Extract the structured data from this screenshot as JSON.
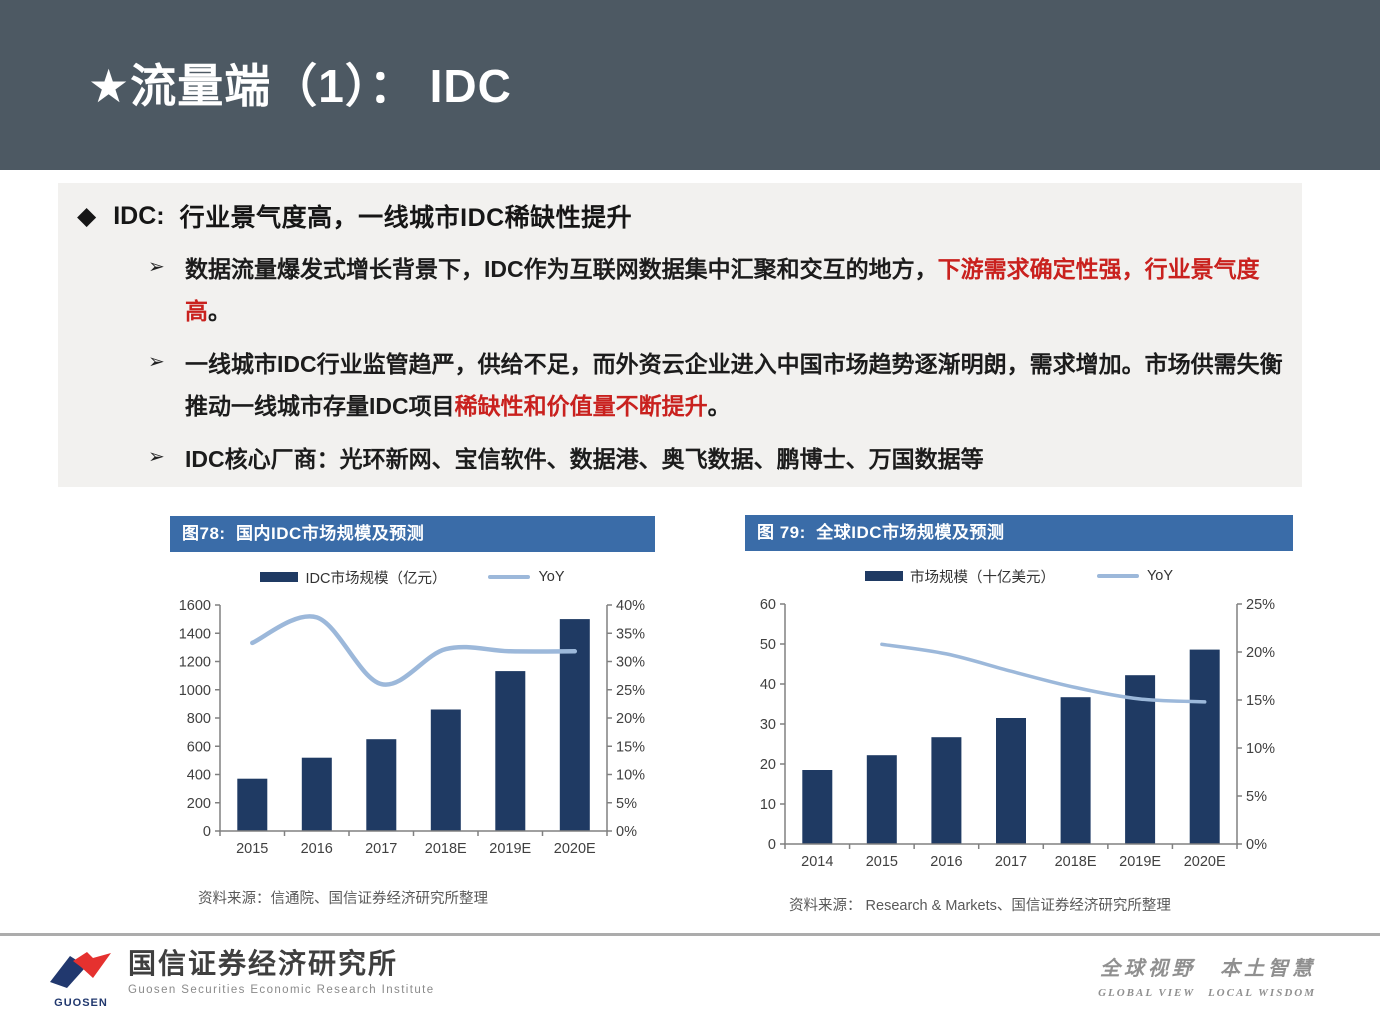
{
  "colors": {
    "header_bg": "#4d5963",
    "box_bg": "#f2f1ef",
    "title_bar_bg": "#3a6ca8",
    "bar_navy": "#1f3a63",
    "line_blue": "#9cb8da",
    "red_text": "#c9211e",
    "axis_gray": "#808080",
    "label_gray": "#404040",
    "source_gray": "#595959",
    "footer_line": "#acacac",
    "logo_blue": "#21386e",
    "logo_red": "#e5312f"
  },
  "header": {
    "title": "★流量端（1）： IDC"
  },
  "section": {
    "heading_icon": "◆",
    "heading_prefix": "IDC:",
    "heading_rest": "行业景气度高，一线城市IDC稀缺性提升",
    "bullet_icon": "➢",
    "bullets": [
      {
        "l1_black": "数据流量爆发式增长背景下，IDC作为互联网数据集中汇聚和交互的地方，",
        "l1_red": "下游需求确定性强，行业景气度",
        "l2_red": "高",
        "l2_black": "。"
      },
      {
        "l1_black": "一线城市IDC行业监管趋严，供给不足，而外资云企业进入中国市场趋势逐渐明朗，需求增加。市场供需失衡",
        "l2_black_a": "推动一线城市存量IDC项目",
        "l2_red": "稀缺性和价值量不断提升",
        "l2_black_b": "。"
      },
      {
        "l1_black": "IDC核心厂商：光环新网、宝信软件、数据港、奥飞数据、鹏博士、万国数据等"
      }
    ]
  },
  "chart_data": [
    {
      "id": "fig78",
      "type": "bar+line",
      "title": "图78:  国内IDC市场规模及预测",
      "legend": [
        "IDC市场规模（亿元）",
        "YoY"
      ],
      "categories": [
        "2015",
        "2016",
        "2017",
        "2018E",
        "2019E",
        "2020E"
      ],
      "series": [
        {
          "name": "IDC市场规模（亿元）",
          "type": "bar",
          "axis": "left",
          "values": [
            370,
            519,
            650,
            860,
            1132,
            1500
          ]
        },
        {
          "name": "YoY",
          "type": "line",
          "axis": "right",
          "values": [
            33.3,
            37.8,
            26.0,
            32.2,
            31.8,
            31.8
          ]
        }
      ],
      "left_axis": {
        "min": 0,
        "max": 1600,
        "step": 200
      },
      "right_axis": {
        "min": 0,
        "max": 40,
        "step": 5,
        "format": "percent"
      },
      "grid": false,
      "legend_position": "top",
      "source": "资料来源：信通院、国信证券经济研究所整理"
    },
    {
      "id": "fig79",
      "type": "bar+line",
      "title": "图 79:  全球IDC市场规模及预测",
      "legend": [
        "市场规模（十亿美元）",
        "YoY"
      ],
      "categories": [
        "2014",
        "2015",
        "2016",
        "2017",
        "2018E",
        "2019E",
        "2020E"
      ],
      "series": [
        {
          "name": "市场规模（十亿美元）",
          "type": "bar",
          "axis": "left",
          "values": [
            18.5,
            22.2,
            26.7,
            31.5,
            36.7,
            42.2,
            48.6
          ]
        },
        {
          "name": "YoY",
          "type": "line",
          "axis": "right",
          "values": [
            null,
            20.8,
            19.8,
            18.0,
            16.3,
            15.1,
            14.8
          ]
        }
      ],
      "left_axis": {
        "min": 0,
        "max": 60,
        "step": 10
      },
      "right_axis": {
        "min": 0,
        "max": 25,
        "step": 5,
        "format": "percent"
      },
      "grid": false,
      "legend_position": "top",
      "source": "资料来源： Research & Markets、国信证券经济研究所整理"
    }
  ],
  "footer": {
    "logo_text": "GUOSEN",
    "company_cn": "国信证券经济研究所",
    "company_en": "Guosen Securities Economic Research Institute",
    "motto_cn": "全球视野　本土智慧",
    "motto_en": "GLOBAL VIEW　LOCAL WISDOM"
  }
}
